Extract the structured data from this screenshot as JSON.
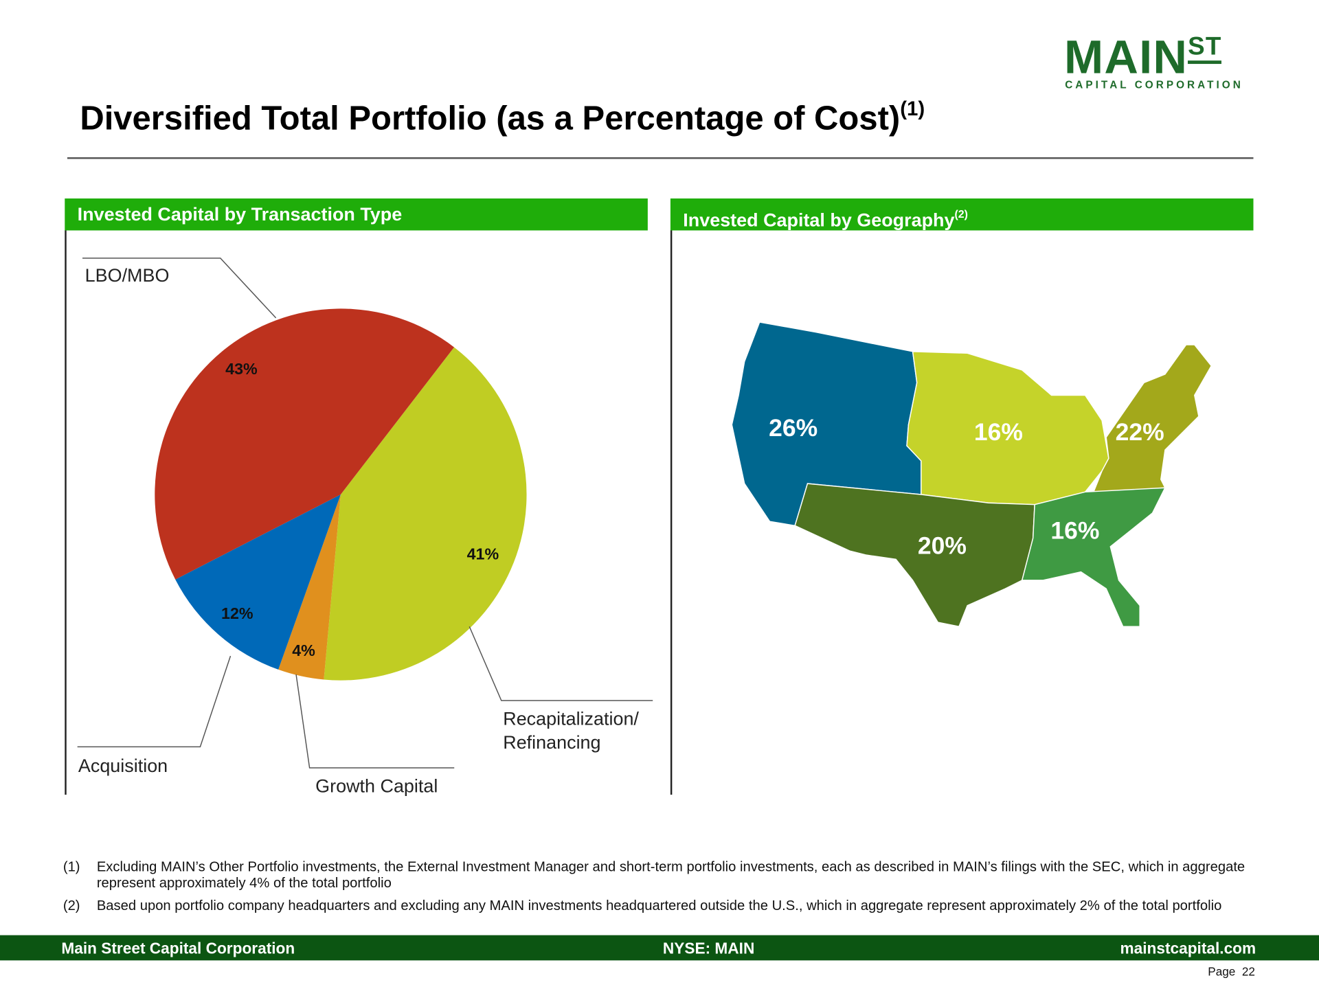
{
  "header": {
    "logo_main": "MAIN",
    "logo_st": "ST",
    "logo_sub": "CAPITAL CORPORATION",
    "title": "Diversified Total Portfolio (as a Percentage of Cost)",
    "title_note": "(1)"
  },
  "chart_data": {
    "type": "pie",
    "title": "Invested Capital by Transaction Type",
    "categories": [
      "Recapitalization/ Refinancing",
      "Growth Capital",
      "Acquisition",
      "LBO/MBO"
    ],
    "values": [
      41,
      4,
      12,
      43
    ],
    "value_labels": [
      "41%",
      "4%",
      "12%",
      "43%"
    ],
    "colors": [
      "#c0cd23",
      "#e0901e",
      "#0069b8",
      "#bd321e"
    ]
  },
  "map": {
    "title": "Invested Capital by Geography",
    "title_note": "(2)",
    "regions": [
      {
        "label": "26%"
      },
      {
        "label": "16%"
      },
      {
        "label": "22%"
      },
      {
        "label": "20%"
      },
      {
        "label": "16%"
      }
    ]
  },
  "footnotes": [
    {
      "marker": "(1)",
      "text": "Excluding MAIN’s Other Portfolio investments, the External Investment Manager and short-term portfolio investments, each as described in MAIN’s filings with the SEC, which in aggregate represent approximately 4% of the total portfolio"
    },
    {
      "marker": "(2)",
      "text": "Based upon portfolio company headquarters and excluding any MAIN investments headquartered outside the U.S., which in aggregate represent approximately 2% of the total portfolio"
    }
  ],
  "footer": {
    "company": "Main Street Capital Corporation",
    "ticker": "NYSE: MAIN",
    "website": "mainstcapital.com",
    "page": "Page  22"
  }
}
